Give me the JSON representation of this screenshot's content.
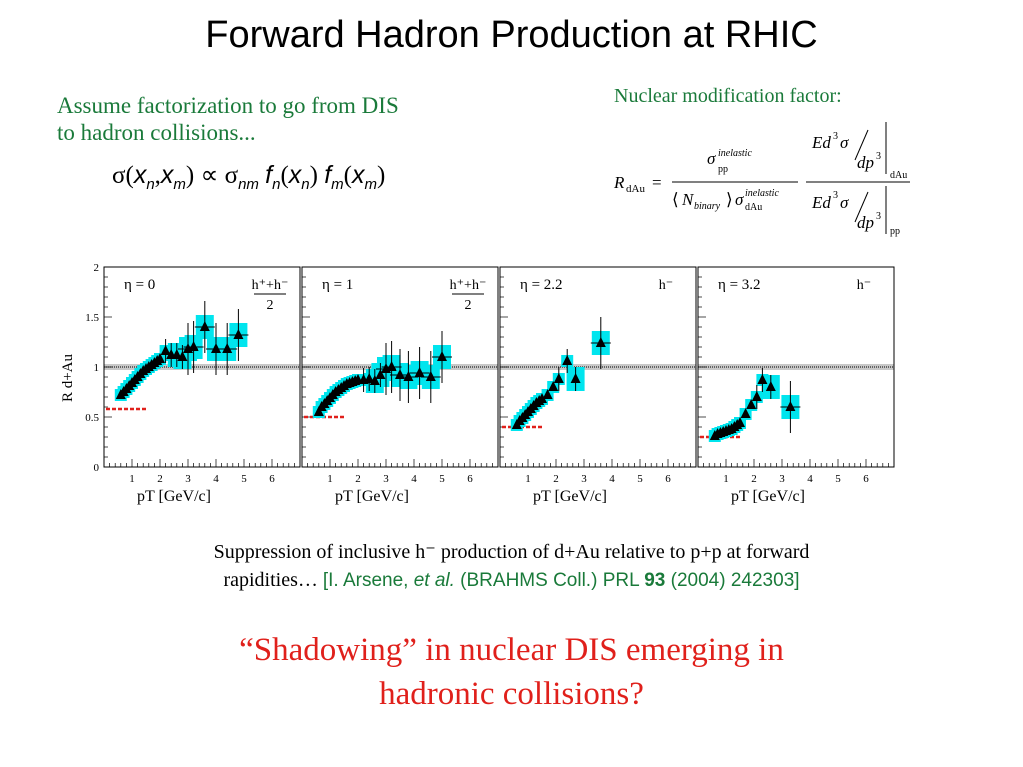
{
  "title": "Forward Hadron Production at RHIC",
  "assume_line1": "Assume factorization to go from DIS",
  "assume_line2": "to hadron collisions...",
  "formula_label": "Nuclear modification factor:",
  "caption_line1": "Suppression of inclusive h⁻ production of d+Au relative to p+p at forward",
  "caption_line2_a": "rapidities… ",
  "ref_a": "[I. Arsene, ",
  "ref_etal": "et al.",
  "ref_b": " (BRAHMS Coll.) PRL ",
  "ref_vol": "93",
  "ref_c": " (2004) 242303]",
  "question_line1": "“Shadowing” in nuclear DIS emerging in",
  "question_line2": "hadronic collisions?",
  "colors": {
    "title": "#000000",
    "green": "#1a7a3a",
    "red": "#e0201b",
    "band": "#00e5ee"
  },
  "chart_data": {
    "type": "scatter",
    "ylabel": "R d+Au",
    "ylim": [
      0,
      2
    ],
    "yticks": [
      "0",
      "0.5",
      "1",
      "1.5",
      "2"
    ],
    "xlim": [
      0,
      7
    ],
    "xticks": [
      "1",
      "2",
      "3",
      "4",
      "5",
      "6"
    ],
    "xlabel": "pT [GeV/c]",
    "reference_line": 1,
    "panels": [
      {
        "eta": "η = 0",
        "species": "h⁺+h⁻",
        "species_denom": "2",
        "red_level": 0.58,
        "points": [
          [
            0.6,
            0.72
          ],
          [
            0.7,
            0.75
          ],
          [
            0.8,
            0.78
          ],
          [
            0.9,
            0.81
          ],
          [
            1.0,
            0.84
          ],
          [
            1.1,
            0.87
          ],
          [
            1.2,
            0.9
          ],
          [
            1.3,
            0.93
          ],
          [
            1.4,
            0.96
          ],
          [
            1.5,
            0.98
          ],
          [
            1.6,
            1.0
          ],
          [
            1.7,
            1.02
          ],
          [
            1.8,
            1.04
          ],
          [
            1.9,
            1.06
          ],
          [
            2.0,
            1.08
          ],
          [
            2.2,
            1.16
          ],
          [
            2.4,
            1.12
          ],
          [
            2.6,
            1.12
          ],
          [
            2.8,
            1.1
          ],
          [
            3.0,
            1.18
          ],
          [
            3.2,
            1.2
          ],
          [
            3.6,
            1.4
          ],
          [
            4.0,
            1.18
          ],
          [
            4.4,
            1.18
          ],
          [
            4.8,
            1.32
          ]
        ]
      },
      {
        "eta": "η = 1",
        "species": "h⁺+h⁻",
        "species_denom": "2",
        "red_level": 0.5,
        "points": [
          [
            0.6,
            0.55
          ],
          [
            0.7,
            0.6
          ],
          [
            0.8,
            0.63
          ],
          [
            0.9,
            0.66
          ],
          [
            1.0,
            0.69
          ],
          [
            1.1,
            0.72
          ],
          [
            1.2,
            0.75
          ],
          [
            1.3,
            0.77
          ],
          [
            1.4,
            0.79
          ],
          [
            1.5,
            0.81
          ],
          [
            1.6,
            0.83
          ],
          [
            1.7,
            0.84
          ],
          [
            1.8,
            0.85
          ],
          [
            1.9,
            0.86
          ],
          [
            2.0,
            0.87
          ],
          [
            2.2,
            0.87
          ],
          [
            2.4,
            0.88
          ],
          [
            2.6,
            0.86
          ],
          [
            2.8,
            0.92
          ],
          [
            3.0,
            0.98
          ],
          [
            3.2,
            1.0
          ],
          [
            3.5,
            0.92
          ],
          [
            3.8,
            0.9
          ],
          [
            4.2,
            0.94
          ],
          [
            4.6,
            0.9
          ],
          [
            5.0,
            1.1
          ]
        ]
      },
      {
        "eta": "η = 2.2",
        "species": "h⁻",
        "species_denom": "",
        "red_level": 0.4,
        "points": [
          [
            0.6,
            0.42
          ],
          [
            0.7,
            0.46
          ],
          [
            0.8,
            0.49
          ],
          [
            0.9,
            0.52
          ],
          [
            1.0,
            0.55
          ],
          [
            1.1,
            0.58
          ],
          [
            1.2,
            0.61
          ],
          [
            1.3,
            0.64
          ],
          [
            1.4,
            0.66
          ],
          [
            1.5,
            0.68
          ],
          [
            1.7,
            0.72
          ],
          [
            1.9,
            0.8
          ],
          [
            2.1,
            0.88
          ],
          [
            2.4,
            1.06
          ],
          [
            2.7,
            0.88
          ],
          [
            3.6,
            1.24
          ]
        ]
      },
      {
        "eta": "η = 3.2",
        "species": "h⁻",
        "species_denom": "",
        "red_level": 0.3,
        "points": [
          [
            0.6,
            0.31
          ],
          [
            0.7,
            0.33
          ],
          [
            0.8,
            0.34
          ],
          [
            0.9,
            0.35
          ],
          [
            1.0,
            0.36
          ],
          [
            1.1,
            0.37
          ],
          [
            1.2,
            0.38
          ],
          [
            1.3,
            0.4
          ],
          [
            1.4,
            0.42
          ],
          [
            1.5,
            0.44
          ],
          [
            1.7,
            0.53
          ],
          [
            1.9,
            0.62
          ],
          [
            2.1,
            0.7
          ],
          [
            2.3,
            0.87
          ],
          [
            2.6,
            0.8
          ],
          [
            3.3,
            0.6
          ]
        ]
      }
    ]
  }
}
